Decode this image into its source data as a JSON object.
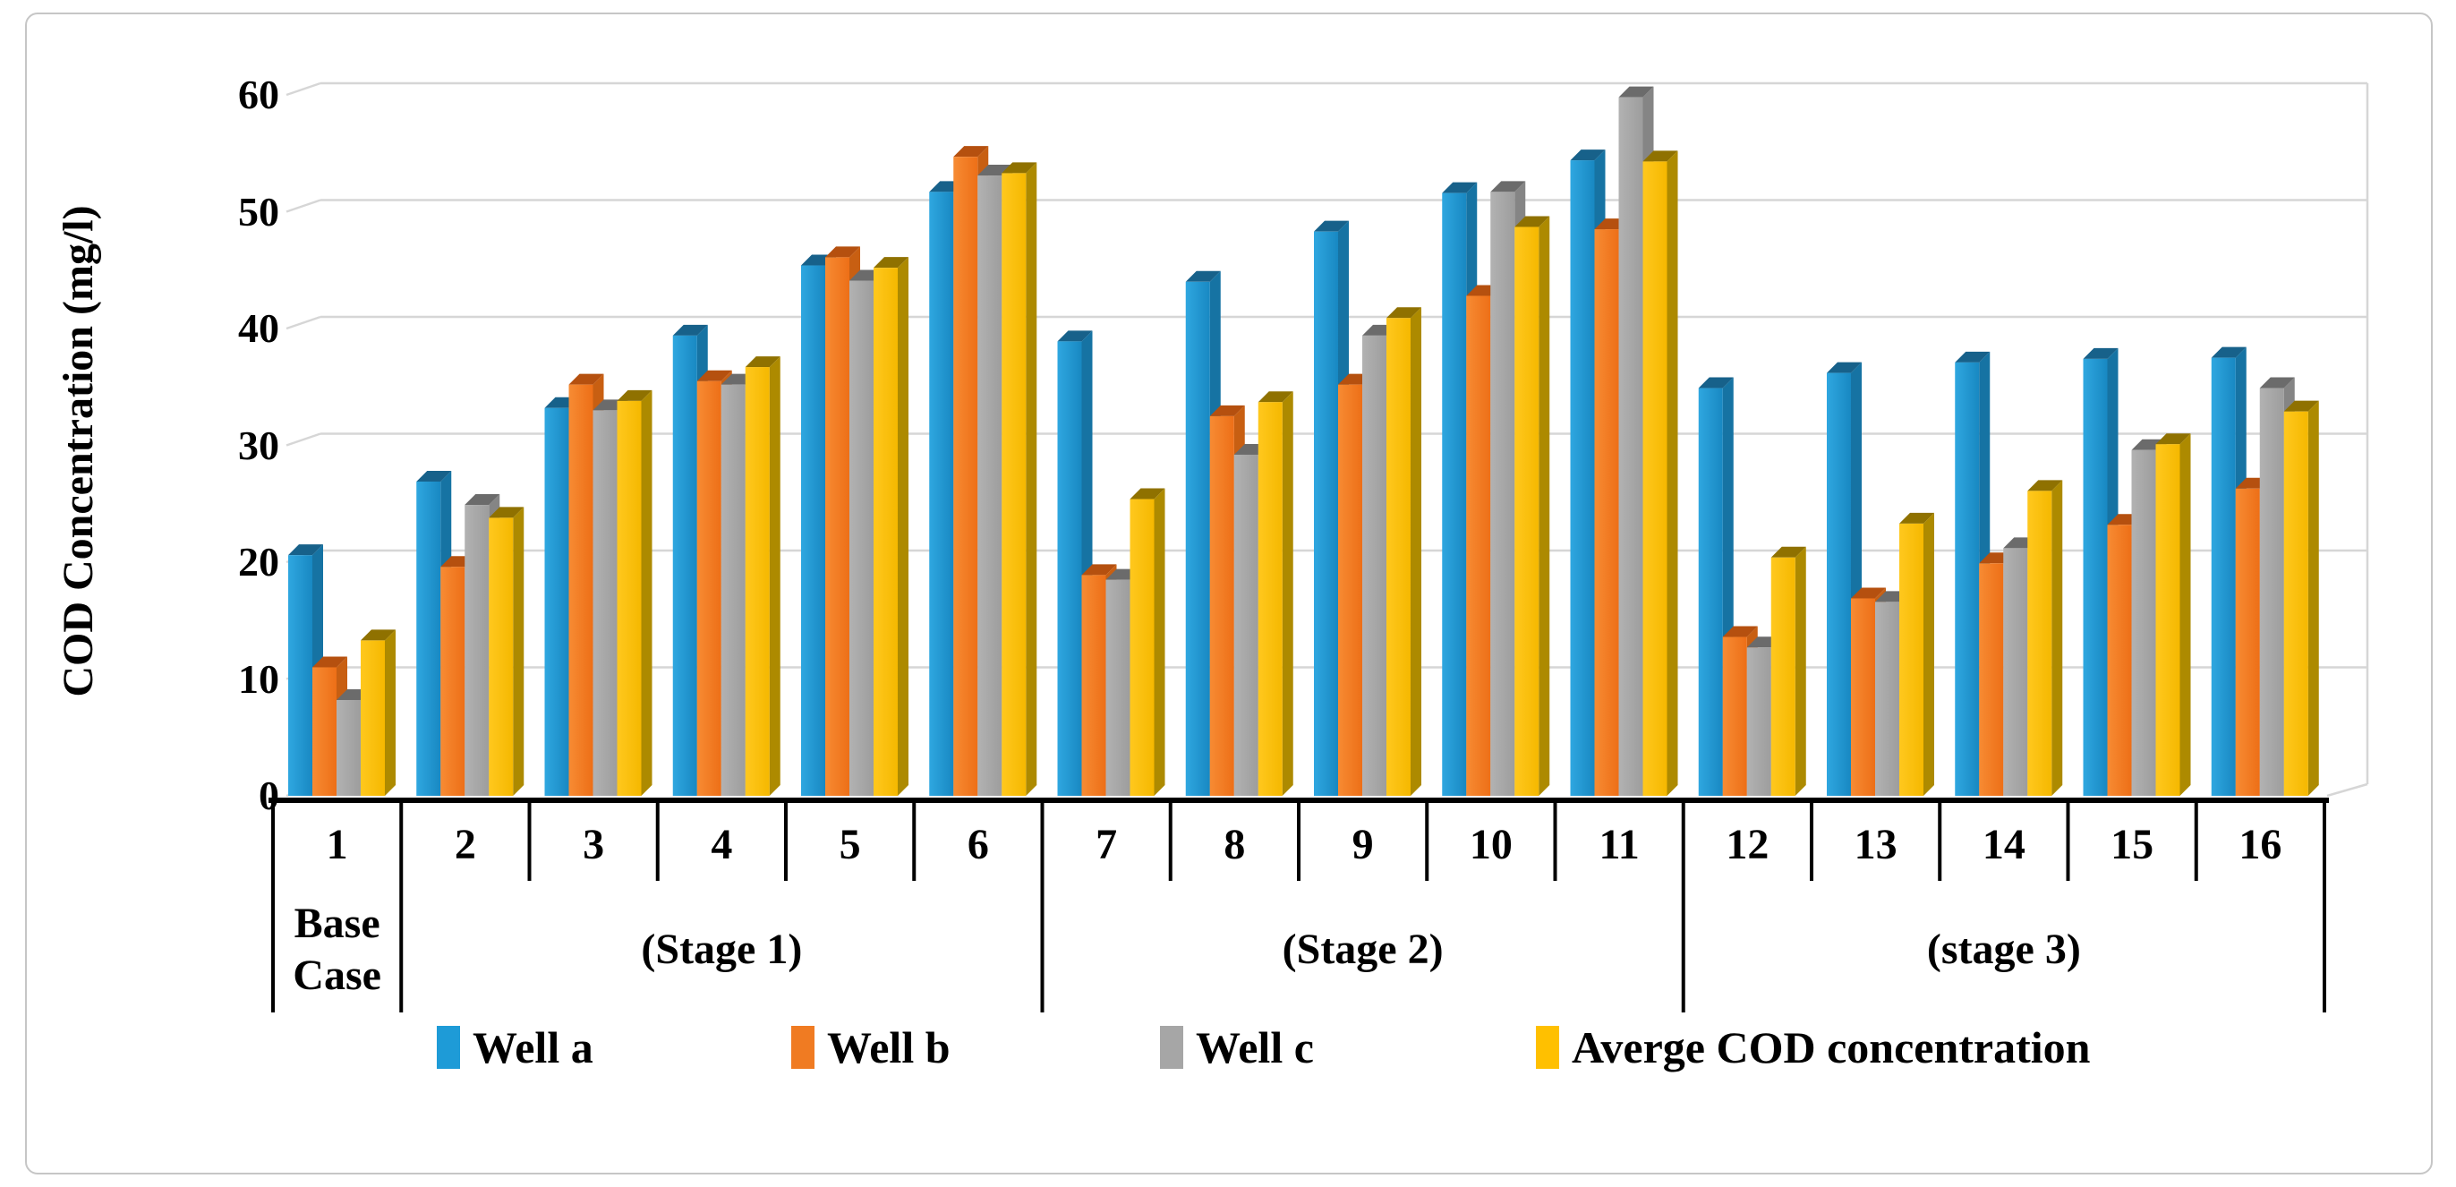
{
  "chart_data": {
    "type": "bar",
    "title": "",
    "ylabel": "COD Concentration (mg/l)",
    "xlabel": "",
    "ylim": [
      0,
      60
    ],
    "ytick_step": 10,
    "grid": true,
    "legend_position": "bottom",
    "categories": [
      "1",
      "2",
      "3",
      "4",
      "5",
      "6",
      "7",
      "8",
      "9",
      "10",
      "11",
      "12",
      "13",
      "14",
      "15",
      "16"
    ],
    "stage_groups": [
      {
        "label": "Base Case",
        "from": 1,
        "to": 1
      },
      {
        "label": "(Stage 1)",
        "from": 2,
        "to": 6
      },
      {
        "label": "(Stage 2)",
        "from": 7,
        "to": 11
      },
      {
        "label": "(stage 3)",
        "from": 12,
        "to": 16
      }
    ],
    "series": [
      {
        "name": "Well a",
        "color": "#1E9BD7",
        "values": [
          20.6,
          26.9,
          33.2,
          39.4,
          45.4,
          51.7,
          38.9,
          44.0,
          48.3,
          51.6,
          54.4,
          34.9,
          36.2,
          37.1,
          37.4,
          37.5
        ]
      },
      {
        "name": "Well b",
        "color": "#F07B22",
        "values": [
          11.0,
          19.6,
          35.2,
          35.5,
          46.1,
          54.7,
          18.9,
          32.5,
          35.2,
          42.8,
          48.5,
          13.6,
          16.9,
          19.9,
          23.2,
          26.3
        ]
      },
      {
        "name": "Well c",
        "color": "#A6A6A6",
        "values": [
          8.2,
          24.9,
          33.0,
          35.2,
          44.1,
          53.1,
          18.5,
          29.2,
          39.4,
          51.7,
          59.8,
          12.7,
          16.6,
          21.2,
          29.6,
          34.9
        ]
      },
      {
        "name": "Averge COD concentration",
        "color": "#FFC000",
        "values": [
          13.3,
          23.8,
          33.8,
          36.7,
          45.2,
          53.3,
          25.4,
          33.7,
          40.9,
          48.7,
          54.3,
          20.4,
          23.3,
          26.1,
          30.1,
          32.9
        ]
      }
    ],
    "bar_shades": [
      {
        "face1": "#2FA7E0",
        "face2": "#1888C2",
        "top": "#17618A",
        "side": "#1673A3"
      },
      {
        "face1": "#F78B33",
        "face2": "#ED6F17",
        "top": "#B5500F",
        "side": "#C85F12"
      },
      {
        "face1": "#B2B2B2",
        "face2": "#9D9D9D",
        "top": "#6B6B6B",
        "side": "#858585"
      },
      {
        "face1": "#FFC81E",
        "face2": "#F5B800",
        "top": "#8F7100",
        "side": "#AD8A00"
      }
    ],
    "gridline_color": "#D6D6D6",
    "axis_color": "#000000",
    "legend_item_lefts": [
      488,
      884,
      1296,
      1716
    ]
  }
}
